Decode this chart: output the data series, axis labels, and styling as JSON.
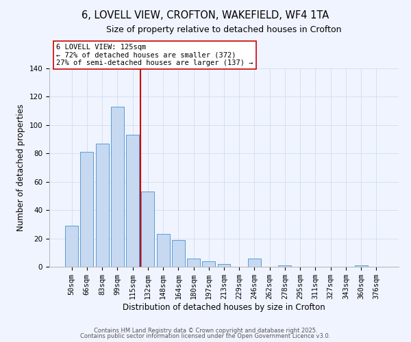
{
  "title": "6, LOVELL VIEW, CROFTON, WAKEFIELD, WF4 1TA",
  "subtitle": "Size of property relative to detached houses in Crofton",
  "xlabel": "Distribution of detached houses by size in Crofton",
  "ylabel": "Number of detached properties",
  "bar_labels": [
    "50sqm",
    "66sqm",
    "83sqm",
    "99sqm",
    "115sqm",
    "132sqm",
    "148sqm",
    "164sqm",
    "180sqm",
    "197sqm",
    "213sqm",
    "229sqm",
    "246sqm",
    "262sqm",
    "278sqm",
    "295sqm",
    "311sqm",
    "327sqm",
    "343sqm",
    "360sqm",
    "376sqm"
  ],
  "bar_values": [
    29,
    81,
    87,
    113,
    93,
    53,
    23,
    19,
    6,
    4,
    2,
    0,
    6,
    0,
    1,
    0,
    0,
    0,
    0,
    1,
    0
  ],
  "bar_color": "#c6d9f1",
  "bar_edge_color": "#5b9bd5",
  "vline_color": "#cc0000",
  "ylim": [
    0,
    140
  ],
  "yticks": [
    0,
    20,
    40,
    60,
    80,
    100,
    120,
    140
  ],
  "annotation_title": "6 LOVELL VIEW: 125sqm",
  "annotation_line1": "← 72% of detached houses are smaller (372)",
  "annotation_line2": "27% of semi-detached houses are larger (137) →",
  "footer1": "Contains HM Land Registry data © Crown copyright and database right 2025.",
  "footer2": "Contains public sector information licensed under the Open Government Licence v3.0.",
  "background_color": "#f0f4ff",
  "title_fontsize": 10.5,
  "subtitle_fontsize": 9,
  "axis_label_fontsize": 8.5,
  "tick_fontsize": 7.5,
  "annotation_fontsize": 7.5,
  "footer_fontsize": 6
}
